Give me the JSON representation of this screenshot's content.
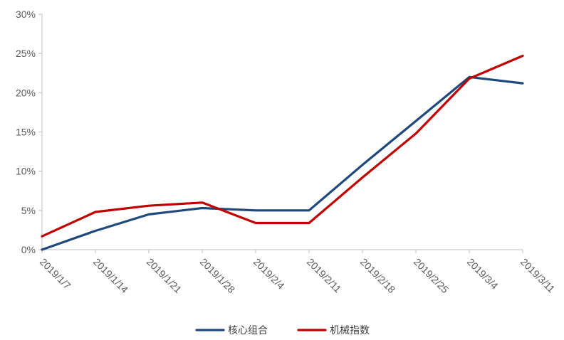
{
  "chart_data": {
    "type": "line",
    "title": "",
    "xlabel": "",
    "ylabel": "",
    "categories": [
      "2019/1/7",
      "2019/1/14",
      "2019/1/21",
      "2019/1/28",
      "2019/2/4",
      "2019/2/11",
      "2019/2/18",
      "2019/2/25",
      "2019/3/4",
      "2019/3/11"
    ],
    "y_ticks": [
      "0%",
      "5%",
      "10%",
      "15%",
      "20%",
      "25%",
      "30%"
    ],
    "ylim": [
      0,
      30
    ],
    "y_unit": "%",
    "grid": false,
    "legend_position": "bottom",
    "series": [
      {
        "name": "核心组合",
        "color": "#1F497D",
        "values": [
          0.0,
          2.4,
          4.5,
          5.3,
          5.0,
          5.0,
          10.8,
          16.4,
          22.0,
          21.2
        ]
      },
      {
        "name": "机械指数",
        "color": "#C00000",
        "values": [
          1.7,
          4.8,
          5.6,
          6.0,
          3.4,
          3.4,
          9.2,
          14.8,
          21.8,
          24.7
        ]
      }
    ]
  }
}
